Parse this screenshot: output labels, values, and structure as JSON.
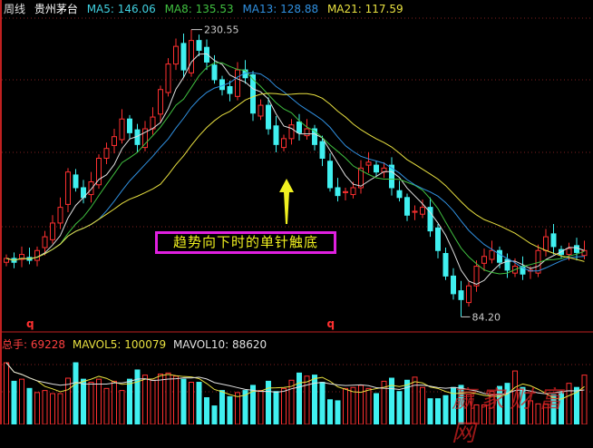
{
  "header": {
    "period": "周线",
    "stock": "贵州茅台",
    "ma5": "MA5: 146.06",
    "ma8": "MA8: 135.53",
    "ma13": "MA13: 128.88",
    "ma21": "MA21: 117.59"
  },
  "volume_header": {
    "total_label": "总手: 69228",
    "mavol5": "MAVOL5: 100079",
    "mavol10": "MAVOL10: 88620"
  },
  "annotation": "趋势向下时的单针触底",
  "watermark": "赢家财富网",
  "colors": {
    "up": "#ff3030",
    "down": "#40f0f0",
    "ma5": "#e0e0e0",
    "ma8": "#40c040",
    "ma13": "#3090e0",
    "ma21": "#e8e040",
    "grid": "#802020",
    "arrow": "#f0f020"
  },
  "chart_data": {
    "type": "candlestick",
    "ylim": [
      77,
      241
    ],
    "closes": [
      114,
      112,
      116,
      113,
      118,
      125,
      132,
      140,
      158,
      150,
      145,
      153,
      165,
      170,
      176,
      185,
      178,
      172,
      180,
      186,
      200,
      213,
      222,
      210,
      225,
      220,
      214,
      205,
      200,
      198,
      210,
      206,
      188,
      192,
      180,
      172,
      175,
      182,
      178,
      180,
      172,
      165,
      150,
      146,
      148,
      150,
      160,
      163,
      158,
      160,
      150,
      145,
      136,
      138,
      140,
      128,
      118,
      105,
      96,
      93,
      100,
      110,
      115,
      118,
      112,
      108,
      110,
      106,
      108,
      118,
      125,
      120,
      116,
      119,
      117,
      118
    ],
    "volumes": [
      60000,
      42000,
      44000,
      35000,
      31000,
      33000,
      30000,
      30000,
      45000,
      60000,
      44000,
      41000,
      44000,
      35000,
      42000,
      33000,
      44000,
      53000,
      48000,
      43000,
      49000,
      50000,
      47000,
      44000,
      41000,
      41000,
      26000,
      18000,
      33000,
      27000,
      31000,
      33000,
      38000,
      33000,
      42000,
      32000,
      35000,
      43000,
      50000,
      47000,
      48000,
      41000,
      24000,
      23000,
      35000,
      36000,
      38000,
      35000,
      30000,
      42000,
      45000,
      32000,
      43000,
      46000,
      36000,
      25000,
      25000,
      28000,
      36000,
      38000,
      29000,
      19000,
      19000,
      32000,
      37000,
      40000,
      52000,
      36000,
      23000,
      20000,
      20000,
      29000,
      31000,
      40000,
      36000,
      48000
    ],
    "high_marker": {
      "index": 24,
      "label": "230.55",
      "value": 230.55
    },
    "low_marker": {
      "index": 59,
      "label": "84.20",
      "value": 84.2
    },
    "signal_marks": [
      {
        "index": 4,
        "label": "q"
      },
      {
        "index": 43,
        "label": "q"
      }
    ],
    "ma_periods": [
      5,
      8,
      13,
      21
    ],
    "volume_ma_periods": [
      5,
      10
    ]
  }
}
